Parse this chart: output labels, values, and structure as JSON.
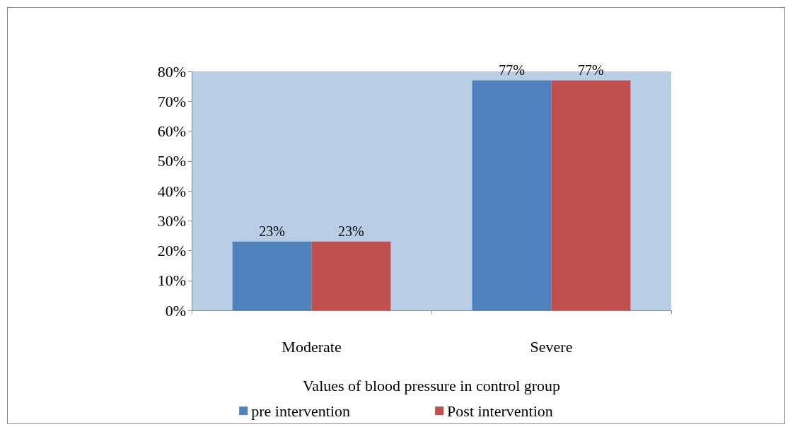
{
  "chart_data": {
    "type": "bar",
    "xlabel": "Values of blood pressure in control group",
    "categories": [
      "Moderate",
      "Severe"
    ],
    "series": [
      {
        "name": "pre intervention",
        "color": "#4f81bd",
        "values": [
          23,
          77
        ],
        "value_labels": [
          "23%",
          "77%"
        ]
      },
      {
        "name": "Post intervention",
        "color": "#c0504d",
        "values": [
          23,
          77
        ],
        "value_labels": [
          "23%",
          "77%"
        ]
      }
    ],
    "ylim": [
      0,
      80
    ],
    "yticks": [
      {
        "value": 0,
        "label": "0%"
      },
      {
        "value": 10,
        "label": "10%"
      },
      {
        "value": 20,
        "label": "20%"
      },
      {
        "value": 30,
        "label": "30%"
      },
      {
        "value": 40,
        "label": "40%"
      },
      {
        "value": 50,
        "label": "50%"
      },
      {
        "value": 60,
        "label": "60%"
      },
      {
        "value": 70,
        "label": "70%"
      },
      {
        "value": 80,
        "label": "80%"
      }
    ],
    "grid": false,
    "legend": "bottom"
  }
}
